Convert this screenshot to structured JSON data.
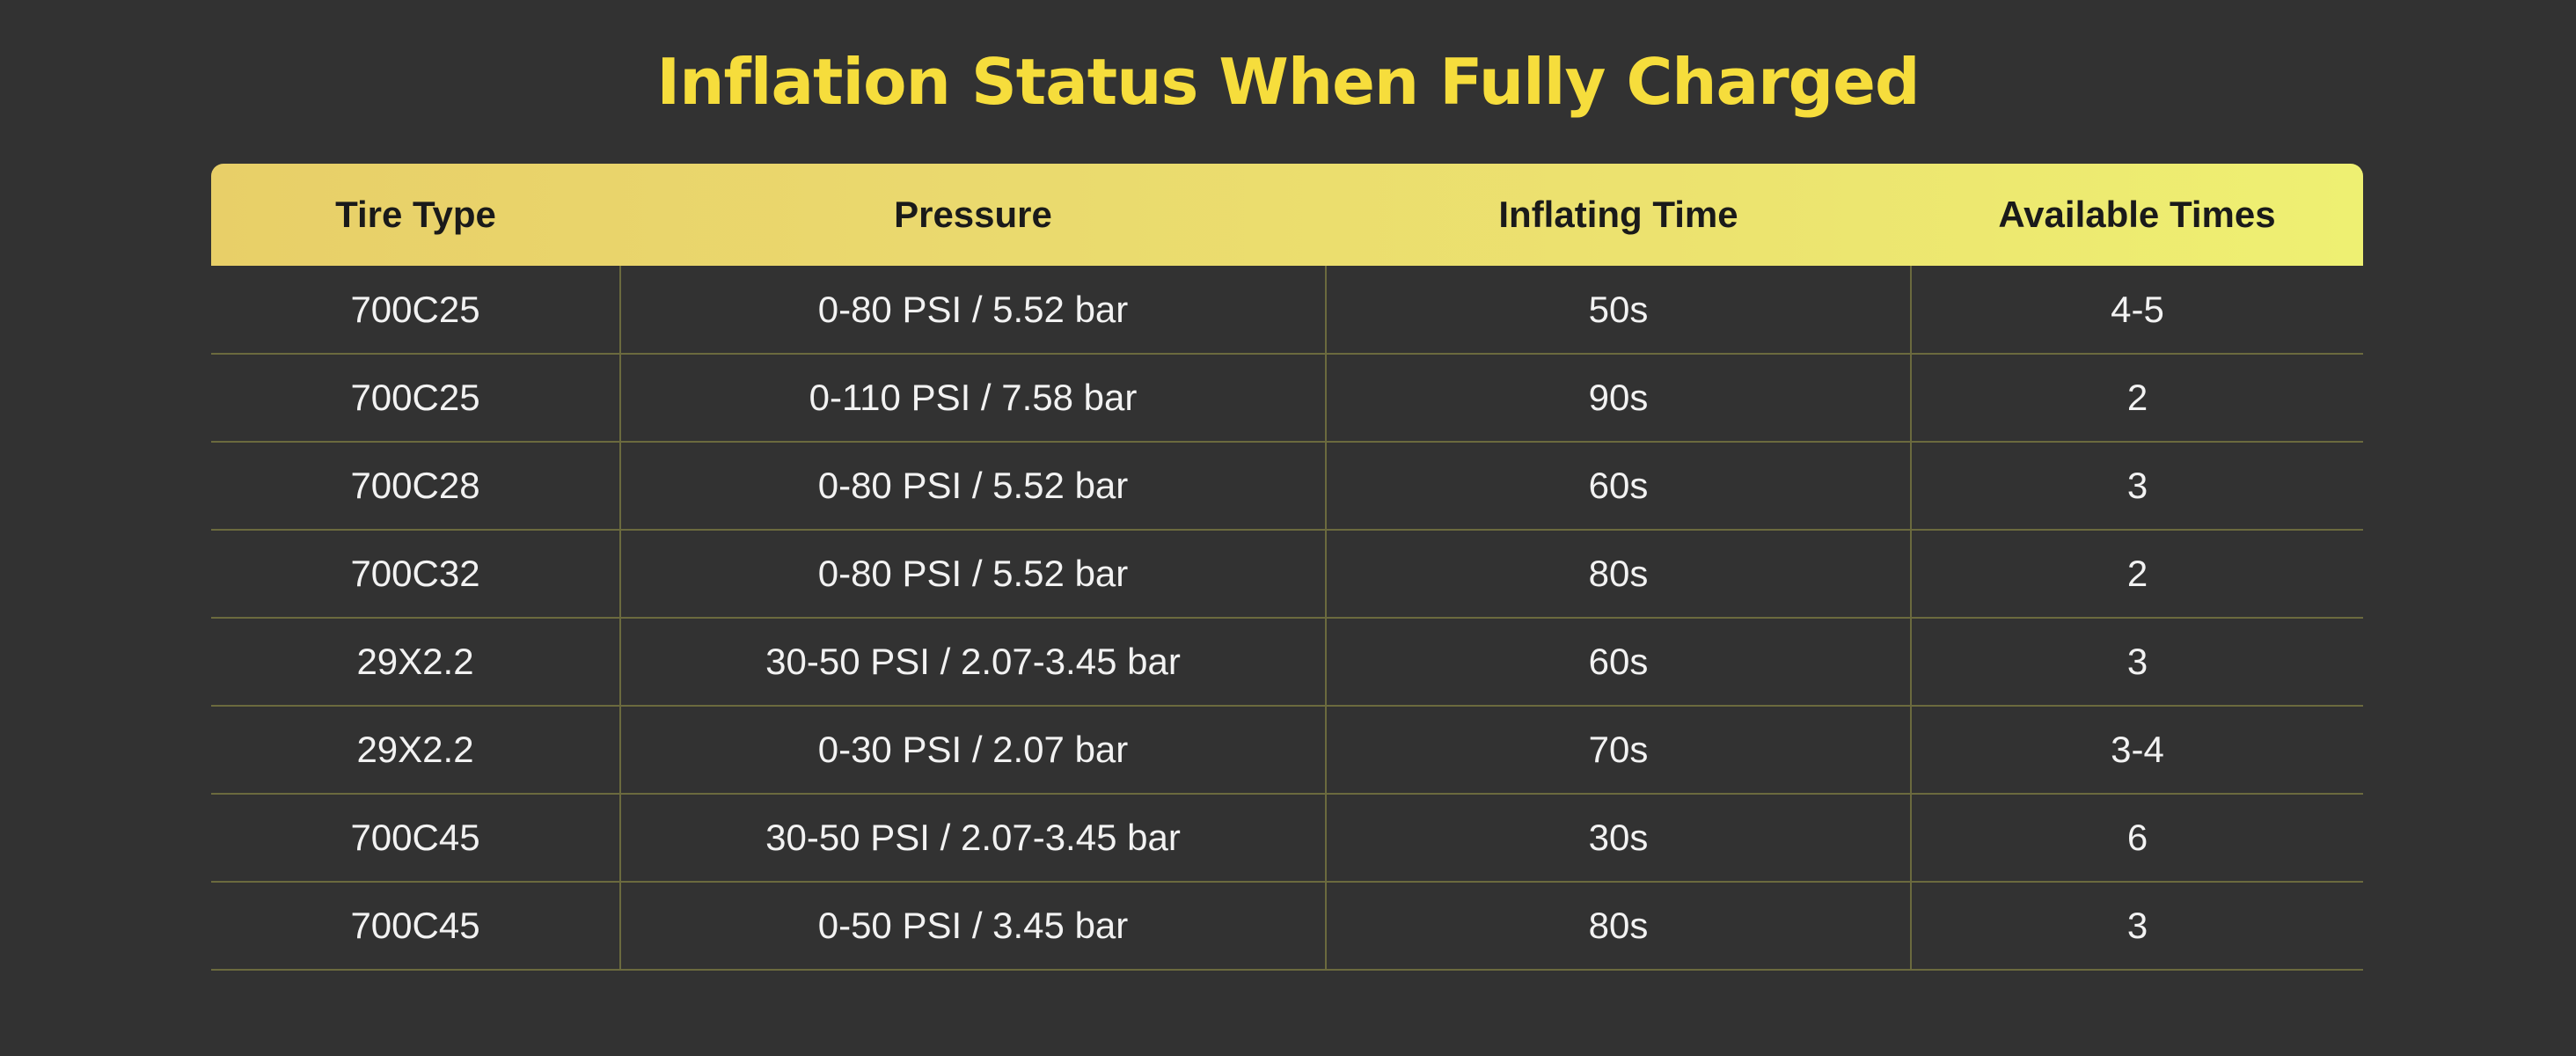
{
  "title": "Inflation Status When Fully Charged",
  "colors": {
    "background": "#323232",
    "title": "#f6dd3c",
    "header_gradient_start": "#e8cf68",
    "header_gradient_end": "#eef072",
    "grid_line": "#6b6a3e",
    "cell_text": "#f2f2f2"
  },
  "table": {
    "headers": [
      "Tire Type",
      "Pressure",
      "Inflating Time",
      "Available Times"
    ],
    "rows": [
      [
        "700C25",
        "0-80 PSI / 5.52 bar",
        "50s",
        "4-5"
      ],
      [
        "700C25",
        "0-110 PSI / 7.58 bar",
        "90s",
        "2"
      ],
      [
        "700C28",
        "0-80 PSI / 5.52 bar",
        "60s",
        "3"
      ],
      [
        "700C32",
        "0-80 PSI / 5.52 bar",
        "80s",
        "2"
      ],
      [
        "29X2.2",
        "30-50 PSI / 2.07-3.45 bar",
        "60s",
        "3"
      ],
      [
        "29X2.2",
        "0-30 PSI / 2.07 bar",
        "70s",
        "3-4"
      ],
      [
        "700C45",
        "30-50 PSI / 2.07-3.45 bar",
        "30s",
        "6"
      ],
      [
        "700C45",
        "0-50 PSI / 3.45 bar",
        "80s",
        "3"
      ]
    ]
  }
}
